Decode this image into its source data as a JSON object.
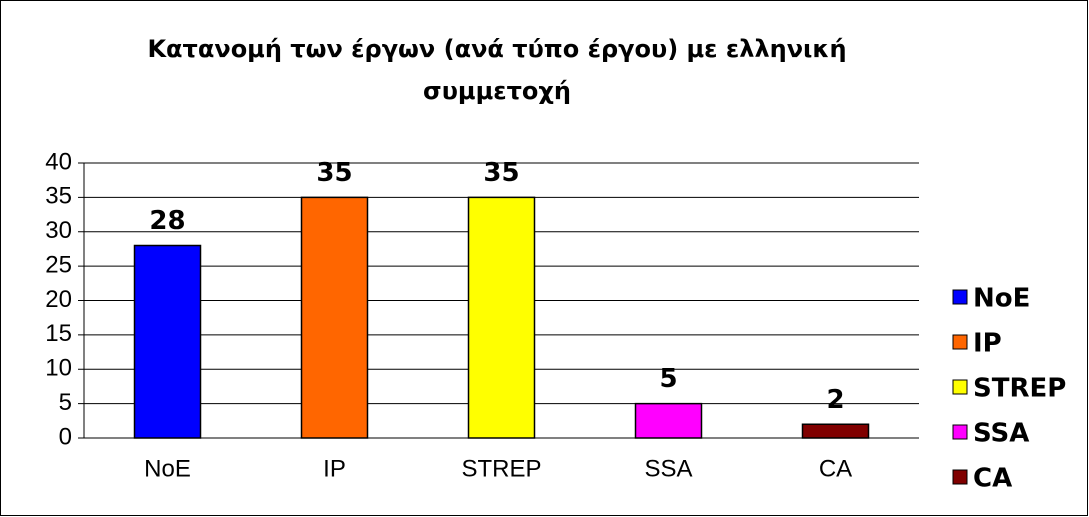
{
  "chart_data": {
    "type": "bar",
    "title": "Κατανομή των έργων (ανά τύπο έργου) με ελληνική συμμετοχή",
    "categories": [
      "NoE",
      "IP",
      "STREP",
      "SSA",
      "CA"
    ],
    "values": [
      28,
      35,
      35,
      5,
      2
    ],
    "colors": [
      "#0000ff",
      "#ff6600",
      "#ffff00",
      "#ff00ff",
      "#800000"
    ],
    "ylim": [
      0,
      40
    ],
    "yticks": [
      0,
      5,
      10,
      15,
      20,
      25,
      30,
      35,
      40
    ],
    "grid": true,
    "legend": "right"
  }
}
